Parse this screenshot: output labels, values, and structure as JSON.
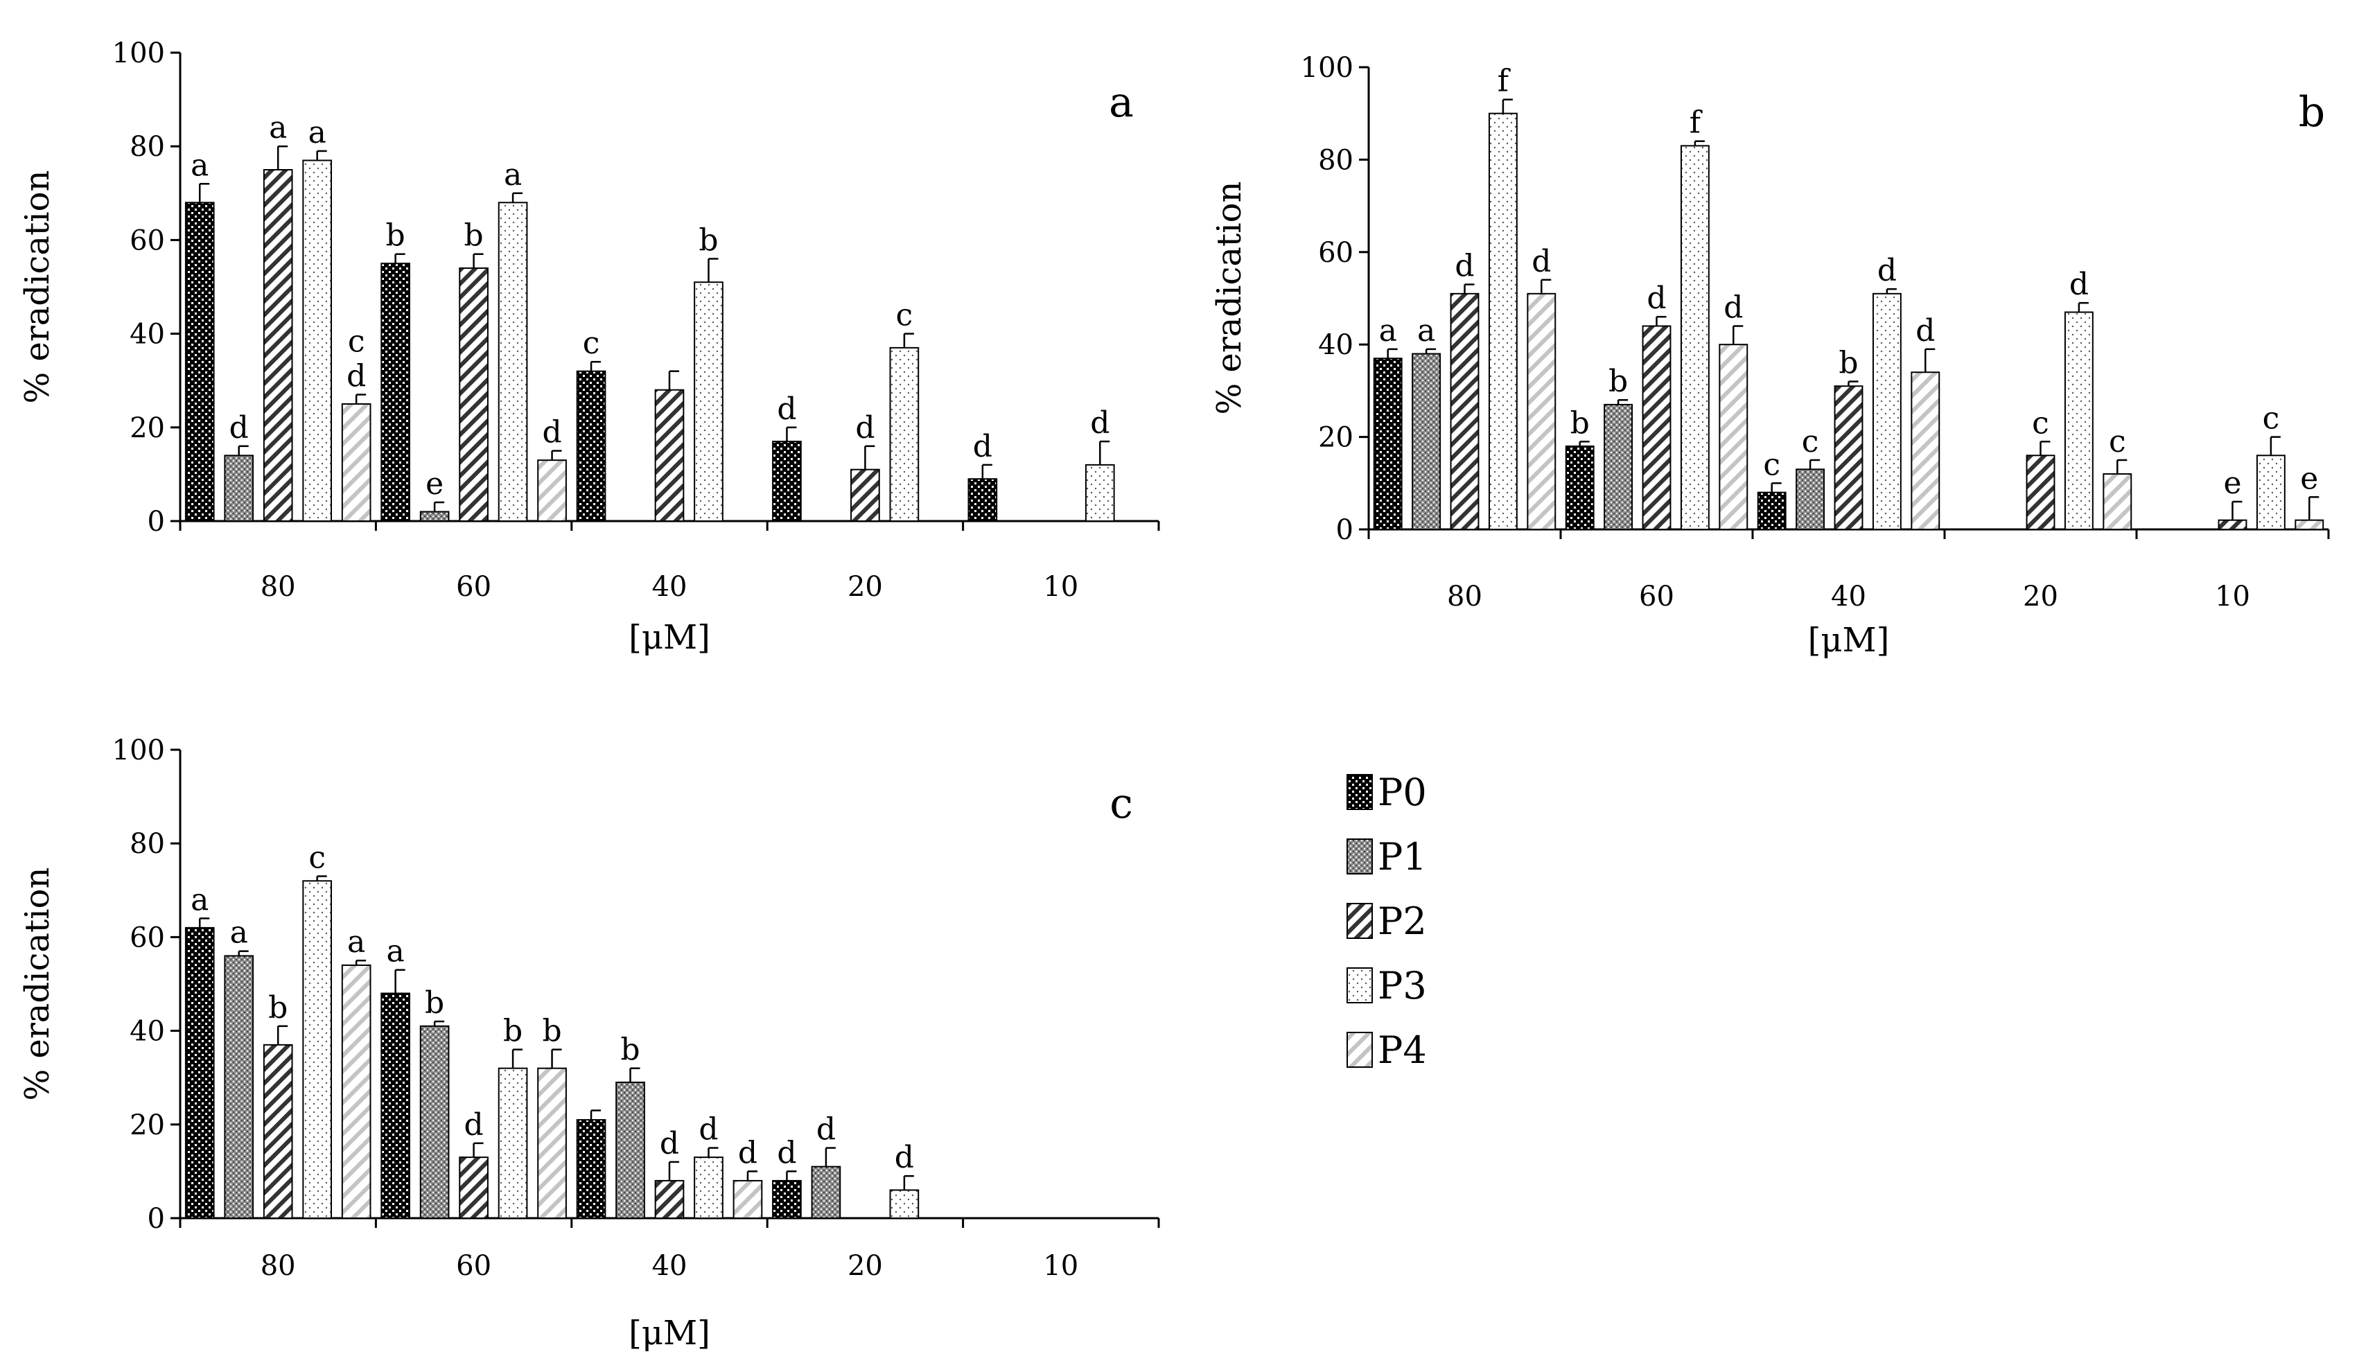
{
  "series_names": [
    "P0",
    "P1",
    "P2",
    "P3",
    "P4"
  ],
  "chart_data": [
    {
      "type": "bar",
      "panel_label": "a",
      "xlabel": "[μM]",
      "ylabel": "% eradication",
      "ylim": [
        0,
        100
      ],
      "yticks": [
        "0",
        "20",
        "40",
        "60",
        "80",
        "100"
      ],
      "categories": [
        "80",
        "60",
        "40",
        "20",
        "10"
      ],
      "series": [
        {
          "name": "P0",
          "values": [
            68,
            55,
            32,
            17,
            9
          ],
          "errors": [
            4,
            2,
            2,
            3,
            3
          ],
          "letters": [
            "a",
            "b",
            "c",
            "d",
            "d"
          ]
        },
        {
          "name": "P1",
          "values": [
            14,
            2,
            null,
            null,
            null
          ],
          "errors": [
            2,
            2,
            null,
            null,
            null
          ],
          "letters": [
            "d",
            "e",
            "",
            "",
            ""
          ]
        },
        {
          "name": "P2",
          "values": [
            75,
            54,
            28,
            11,
            null
          ],
          "errors": [
            5,
            3,
            4,
            5,
            null
          ],
          "letters": [
            "a",
            "b",
            "",
            "d",
            ""
          ]
        },
        {
          "name": "P3",
          "values": [
            77,
            68,
            51,
            37,
            12
          ],
          "errors": [
            2,
            2,
            5,
            3,
            5
          ],
          "letters": [
            "a",
            "a",
            "b",
            "c",
            "d"
          ]
        },
        {
          "name": "P4",
          "values": [
            25,
            13,
            null,
            null,
            null
          ],
          "errors": [
            2,
            2,
            null,
            null,
            null
          ],
          "letters": [
            "c d",
            "d",
            "",
            "",
            ""
          ]
        }
      ]
    },
    {
      "type": "bar",
      "panel_label": "b",
      "xlabel": "[μM]",
      "ylabel": "% eradication",
      "ylim": [
        0,
        100
      ],
      "yticks": [
        "0",
        "20",
        "40",
        "60",
        "80",
        "100"
      ],
      "categories": [
        "80",
        "60",
        "40",
        "20",
        "10"
      ],
      "series": [
        {
          "name": "P0",
          "values": [
            37,
            18,
            8,
            null,
            null
          ],
          "errors": [
            2,
            1,
            2,
            null,
            null
          ],
          "letters": [
            "a",
            "b",
            "c",
            "",
            ""
          ]
        },
        {
          "name": "P1",
          "values": [
            38,
            27,
            13,
            null,
            null
          ],
          "errors": [
            1,
            1,
            2,
            null,
            null
          ],
          "letters": [
            "a",
            "b",
            "c",
            "",
            ""
          ]
        },
        {
          "name": "P2",
          "values": [
            51,
            44,
            31,
            16,
            2
          ],
          "errors": [
            2,
            2,
            1,
            3,
            4
          ],
          "letters": [
            "d",
            "d",
            "b",
            "c",
            "e"
          ]
        },
        {
          "name": "P3",
          "values": [
            90,
            83,
            51,
            47,
            16
          ],
          "errors": [
            3,
            1,
            1,
            2,
            4
          ],
          "letters": [
            "f",
            "f",
            "d",
            "d",
            "c"
          ]
        },
        {
          "name": "P4",
          "values": [
            51,
            40,
            34,
            12,
            2
          ],
          "errors": [
            3,
            4,
            5,
            3,
            5
          ],
          "letters": [
            "d",
            "d",
            "d",
            "c",
            "e"
          ]
        }
      ]
    },
    {
      "type": "bar",
      "panel_label": "c",
      "xlabel": "[μM]",
      "ylabel": "% eradication",
      "ylim": [
        0,
        100
      ],
      "yticks": [
        "0",
        "20",
        "40",
        "60",
        "80",
        "100"
      ],
      "categories": [
        "80",
        "60",
        "40",
        "20",
        "10"
      ],
      "series": [
        {
          "name": "P0",
          "values": [
            62,
            48,
            21,
            8,
            null
          ],
          "errors": [
            2,
            5,
            2,
            2,
            null
          ],
          "letters": [
            "a",
            "a",
            "",
            "d",
            ""
          ]
        },
        {
          "name": "P1",
          "values": [
            56,
            41,
            29,
            11,
            null
          ],
          "errors": [
            1,
            1,
            3,
            4,
            null
          ],
          "letters": [
            "a",
            "b",
            "b",
            "d",
            ""
          ]
        },
        {
          "name": "P2",
          "values": [
            37,
            13,
            8,
            null,
            null
          ],
          "errors": [
            4,
            3,
            4,
            null,
            null
          ],
          "letters": [
            "b",
            "d",
            "d",
            "",
            ""
          ]
        },
        {
          "name": "P3",
          "values": [
            72,
            32,
            13,
            6,
            null
          ],
          "errors": [
            1,
            4,
            2,
            3,
            null
          ],
          "letters": [
            "c",
            "b",
            "d",
            "d",
            ""
          ]
        },
        {
          "name": "P4",
          "values": [
            54,
            32,
            8,
            null,
            null
          ],
          "errors": [
            1,
            4,
            2,
            null,
            null
          ],
          "letters": [
            "a",
            "b",
            "d",
            "",
            ""
          ]
        }
      ]
    }
  ]
}
